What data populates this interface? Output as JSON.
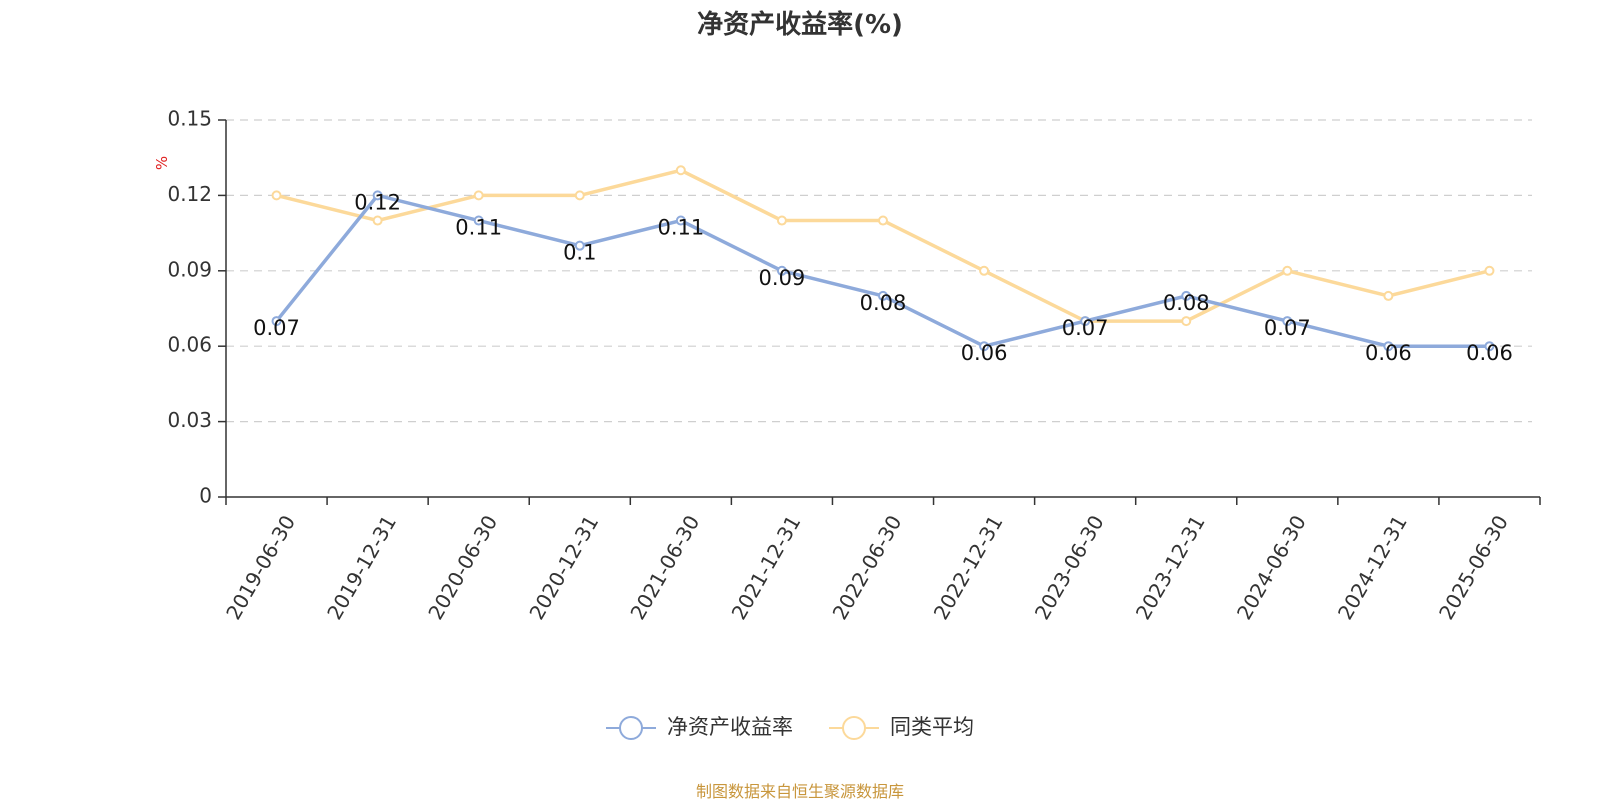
{
  "chart_data": {
    "type": "line",
    "title": "净资产收益率(%)",
    "ylabel": "%",
    "xlabel": "",
    "categories": [
      "2019-06-30",
      "2019-12-31",
      "2020-06-30",
      "2020-12-31",
      "2021-06-30",
      "2021-12-31",
      "2022-06-30",
      "2022-12-31",
      "2023-06-30",
      "2023-12-31",
      "2024-06-30",
      "2024-12-31",
      "2025-06-30"
    ],
    "ylim": [
      0,
      0.15
    ],
    "yticks": [
      "0",
      "0.03",
      "0.06",
      "0.09",
      "0.12",
      "0.15"
    ],
    "grid": true,
    "legend_position": "bottom-center",
    "series": [
      {
        "name": "净资产收益率",
        "color": "#8eaadb",
        "values": [
          0.07,
          0.12,
          0.11,
          0.1,
          0.11,
          0.09,
          0.08,
          0.06,
          0.07,
          0.08,
          0.07,
          0.06,
          0.06
        ],
        "data_labels": [
          "0.07",
          "0.12",
          "0.11",
          "0.1",
          "0.11",
          "0.09",
          "0.08",
          "0.06",
          "0.07",
          "0.08",
          "0.07",
          "0.06",
          "0.06"
        ]
      },
      {
        "name": "同类平均",
        "color": "#fcd99a",
        "values": [
          0.12,
          0.11,
          0.12,
          0.12,
          0.13,
          0.11,
          0.11,
          0.09,
          0.07,
          0.07,
          0.09,
          0.08,
          0.09
        ]
      }
    ]
  },
  "colors": {
    "unit_label": "#e02020",
    "footer": "#c8963c"
  },
  "footer": {
    "source": "制图数据来自恒生聚源数据库"
  }
}
